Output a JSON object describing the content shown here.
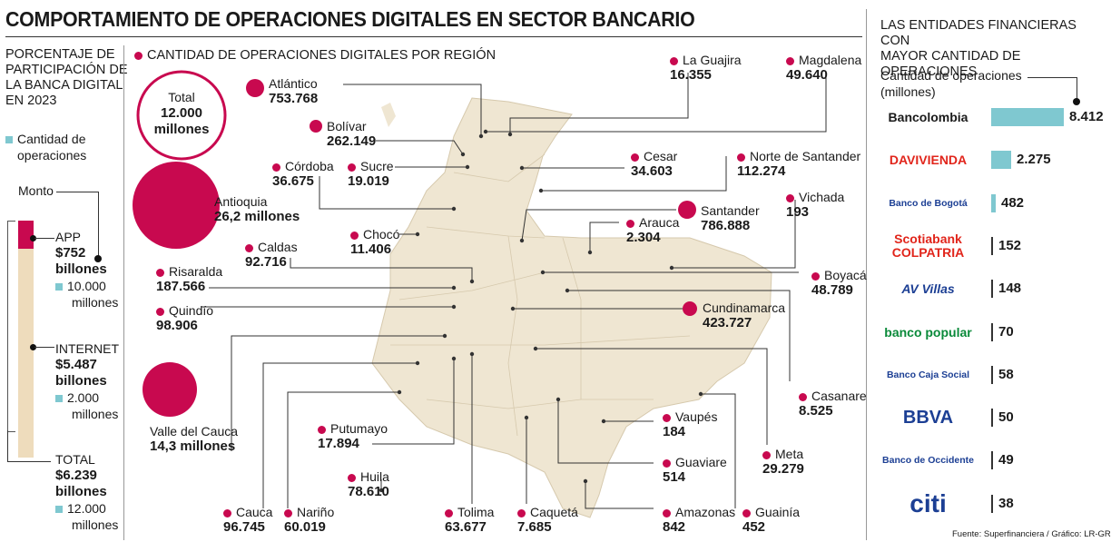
{
  "title": "COMPORTAMIENTO DE OPERACIONES DIGITALES EN SECTOR BANCARIO",
  "left_panel": {
    "heading": [
      "PORCENTAJE DE",
      "PARTICIPACIÓN DE",
      "LA BANCA DIGITAL",
      "EN 2023"
    ],
    "legend_label": [
      "Cantidad de",
      "operaciones"
    ],
    "monto_label": "Monto",
    "app": {
      "label": "APP",
      "monto": "$752",
      "unit": "billones",
      "ops": "10.000",
      "ops_unit": "millones"
    },
    "internet": {
      "label": "INTERNET",
      "monto": "$5.487",
      "unit": "billones",
      "ops": "2.000",
      "ops_unit": "millones"
    },
    "total": {
      "label": "TOTAL",
      "monto": "$6.239",
      "unit": "billones",
      "ops": "12.000",
      "ops_unit": "millones"
    }
  },
  "region_panel": {
    "heading": "CANTIDAD DE OPERACIONES DIGITALES POR REGIÓN",
    "total_label": "Total",
    "total_value": "12.000",
    "total_unit": "millones"
  },
  "right_panel": {
    "heading": [
      "LAS ENTIDADES FINANCIERAS CON",
      "MAYOR CANTIDAD DE OPERACIONES"
    ],
    "sublabel": [
      "Cantidad de operaciones",
      "(millones)"
    ]
  },
  "source": "Fuente: Superfinanciera / Gráfico: LR-GR",
  "colors": {
    "accent": "#c8094f",
    "bar": "#7fc8d0",
    "map": "#efe6d2",
    "app": "#c8094f",
    "internet": "#eedcbc"
  },
  "chart_data": [
    {
      "type": "bar",
      "title": "PORCENTAJE DE PARTICIPACIÓN DE LA BANCA DIGITAL EN 2023",
      "categories": [
        "APP",
        "INTERNET"
      ],
      "monto_billones": [
        752,
        5487
      ],
      "operaciones_millones": [
        10000,
        2000
      ],
      "total_monto_billones": 6239,
      "total_operaciones_millones": 12000
    },
    {
      "type": "bubble-map",
      "title": "CANTIDAD DE OPERACIONES DIGITALES POR REGIÓN",
      "regions": [
        {
          "name": "Atlántico",
          "value": "753.768"
        },
        {
          "name": "Bolívar",
          "value": "262.149"
        },
        {
          "name": "Córdoba",
          "value": "36.675"
        },
        {
          "name": "Sucre",
          "value": "19.019"
        },
        {
          "name": "Antioquia",
          "value": "26,2 millones"
        },
        {
          "name": "Chocó",
          "value": "11.406"
        },
        {
          "name": "Caldas",
          "value": "92.716"
        },
        {
          "name": "Risaralda",
          "value": "187.566"
        },
        {
          "name": "Quindío",
          "value": "98.906"
        },
        {
          "name": "Valle del Cauca",
          "value": "14,3 millones"
        },
        {
          "name": "Putumayo",
          "value": "17.894"
        },
        {
          "name": "Huila",
          "value": "78.610"
        },
        {
          "name": "Cauca",
          "value": "96.745"
        },
        {
          "name": "Nariño",
          "value": "60.019"
        },
        {
          "name": "Tolima",
          "value": "63.677"
        },
        {
          "name": "Caquetá",
          "value": "7.685"
        },
        {
          "name": "Amazonas",
          "value": "842"
        },
        {
          "name": "Guainía",
          "value": "452"
        },
        {
          "name": "Guaviare",
          "value": "514"
        },
        {
          "name": "Vaupés",
          "value": "184"
        },
        {
          "name": "Meta",
          "value": "29.279"
        },
        {
          "name": "Casanare",
          "value": "8.525"
        },
        {
          "name": "Cundinamarca",
          "value": "423.727"
        },
        {
          "name": "Boyacá",
          "value": "48.789"
        },
        {
          "name": "Vichada",
          "value": "193"
        },
        {
          "name": "Santander",
          "value": "786.888"
        },
        {
          "name": "Arauca",
          "value": "2.304"
        },
        {
          "name": "Norte de Santander",
          "value": "112.274"
        },
        {
          "name": "Cesar",
          "value": "34.603"
        },
        {
          "name": "La Guajira",
          "value": "16.355"
        },
        {
          "name": "Magdalena",
          "value": "49.640"
        }
      ]
    },
    {
      "type": "bar",
      "title": "LAS ENTIDADES FINANCIERAS CON MAYOR CANTIDAD DE OPERACIONES",
      "ylabel": "Cantidad de operaciones (millones)",
      "categories": [
        "Bancolombia",
        "Davivienda",
        "Banco de Bogotá",
        "Scotiabank Colpatria",
        "AV Villas",
        "banco popular",
        "Banco Caja Social",
        "BBVA",
        "Banco de Occidente",
        "citi"
      ],
      "values": [
        8412,
        2275,
        482,
        152,
        148,
        70,
        58,
        50,
        49,
        38
      ],
      "labels": [
        "8.412",
        "2.275",
        "482",
        "152",
        "148",
        "70",
        "58",
        "50",
        "49",
        "38"
      ]
    }
  ],
  "bank_logos": [
    {
      "text": "Bancolombia",
      "color": "#1a1a1a"
    },
    {
      "text": "DAVIVIENDA",
      "color": "#e1251b"
    },
    {
      "text": "Banco de Bogotá",
      "color": "#1c3f94"
    },
    {
      "text": "Scotiabank",
      "text2": "COLPATRIA",
      "color": "#e1251b"
    },
    {
      "text": "AV Villas",
      "color": "#1c3f94"
    },
    {
      "text": "banco popular",
      "color": "#0a8a3a"
    },
    {
      "text": "Banco Caja Social",
      "color": "#1c3f94"
    },
    {
      "text": "BBVA",
      "color": "#1c3f94"
    },
    {
      "text": "Banco de Occidente",
      "color": "#1c3f94"
    },
    {
      "text": "citi",
      "color": "#1c3f94"
    }
  ]
}
